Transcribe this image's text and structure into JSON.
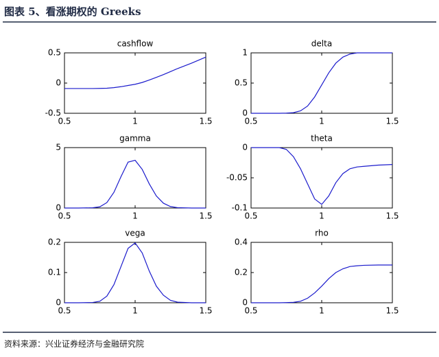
{
  "header": {
    "title": "图表 5、看涨期权的 Greeks"
  },
  "footer": {
    "source": "资料来源：兴业证券经济与金融研究院"
  },
  "chart_data": [
    {
      "type": "line",
      "title": "cashflow",
      "color": "#1a1acc",
      "x": [
        0.5,
        0.6,
        0.7,
        0.75,
        0.8,
        0.85,
        0.9,
        0.95,
        1,
        1.05,
        1.1,
        1.15,
        1.2,
        1.25,
        1.3,
        1.4,
        1.5
      ],
      "values": [
        -0.09,
        -0.09,
        -0.09,
        -0.088,
        -0.085,
        -0.075,
        -0.06,
        -0.04,
        -0.02,
        0.01,
        0.05,
        0.095,
        0.14,
        0.19,
        0.24,
        0.33,
        0.43
      ],
      "xlim": [
        0.5,
        1.5
      ],
      "xticks": [
        0.5,
        1,
        1.5
      ],
      "ylim": [
        -0.5,
        0.5
      ],
      "yticks": [
        -0.5,
        0,
        0.5
      ]
    },
    {
      "type": "line",
      "title": "delta",
      "color": "#1a1acc",
      "x": [
        0.5,
        0.6,
        0.7,
        0.75,
        0.8,
        0.85,
        0.9,
        0.95,
        1,
        1.05,
        1.1,
        1.15,
        1.2,
        1.25,
        1.3,
        1.4,
        1.5
      ],
      "values": [
        0,
        0,
        0,
        0.003,
        0.01,
        0.04,
        0.12,
        0.27,
        0.47,
        0.67,
        0.83,
        0.93,
        0.98,
        1,
        1,
        1,
        1
      ],
      "xlim": [
        0.5,
        1.5
      ],
      "xticks": [
        0.5,
        1,
        1.5
      ],
      "ylim": [
        0,
        1
      ],
      "yticks": [
        0,
        0.5,
        1
      ]
    },
    {
      "type": "line",
      "title": "gamma",
      "color": "#1a1acc",
      "x": [
        0.5,
        0.6,
        0.7,
        0.75,
        0.8,
        0.85,
        0.9,
        0.95,
        1,
        1.05,
        1.1,
        1.15,
        1.2,
        1.25,
        1.3,
        1.4,
        1.5
      ],
      "values": [
        0,
        0,
        0.02,
        0.1,
        0.45,
        1.3,
        2.6,
        3.8,
        3.95,
        3.2,
        2.0,
        1.0,
        0.4,
        0.12,
        0.03,
        0,
        0
      ],
      "xlim": [
        0.5,
        1.5
      ],
      "xticks": [
        0.5,
        1,
        1.5
      ],
      "ylim": [
        0,
        5
      ],
      "yticks": [
        0,
        5
      ]
    },
    {
      "type": "line",
      "title": "theta",
      "color": "#1a1acc",
      "x": [
        0.5,
        0.6,
        0.7,
        0.75,
        0.8,
        0.85,
        0.9,
        0.95,
        1,
        1.05,
        1.1,
        1.15,
        1.2,
        1.25,
        1.3,
        1.4,
        1.5
      ],
      "values": [
        0,
        0,
        0,
        -0.003,
        -0.015,
        -0.035,
        -0.06,
        -0.085,
        -0.094,
        -0.08,
        -0.058,
        -0.043,
        -0.035,
        -0.032,
        -0.031,
        -0.029,
        -0.028
      ],
      "xlim": [
        0.5,
        1.5
      ],
      "xticks": [
        0.5,
        1,
        1.5
      ],
      "ylim": [
        -0.1,
        0
      ],
      "yticks": [
        -0.1,
        -0.05,
        0
      ]
    },
    {
      "type": "line",
      "title": "vega",
      "color": "#1a1acc",
      "x": [
        0.5,
        0.6,
        0.7,
        0.75,
        0.8,
        0.85,
        0.9,
        0.95,
        1,
        1.05,
        1.1,
        1.15,
        1.2,
        1.25,
        1.3,
        1.4,
        1.5
      ],
      "values": [
        0,
        0,
        0.001,
        0.005,
        0.022,
        0.06,
        0.12,
        0.18,
        0.198,
        0.165,
        0.105,
        0.055,
        0.025,
        0.008,
        0.002,
        0,
        0
      ],
      "xlim": [
        0.5,
        1.5
      ],
      "xticks": [
        0.5,
        1,
        1.5
      ],
      "ylim": [
        0,
        0.2
      ],
      "yticks": [
        0,
        0.1,
        0.2
      ]
    },
    {
      "type": "line",
      "title": "rho",
      "color": "#1a1acc",
      "x": [
        0.5,
        0.6,
        0.7,
        0.75,
        0.8,
        0.85,
        0.9,
        0.95,
        1,
        1.05,
        1.1,
        1.15,
        1.2,
        1.25,
        1.3,
        1.4,
        1.5
      ],
      "values": [
        0,
        0,
        0,
        0.001,
        0.003,
        0.01,
        0.03,
        0.065,
        0.11,
        0.16,
        0.2,
        0.225,
        0.24,
        0.245,
        0.248,
        0.25,
        0.25
      ],
      "xlim": [
        0.5,
        1.5
      ],
      "xticks": [
        0.5,
        1,
        1.5
      ],
      "ylim": [
        0,
        0.4
      ],
      "yticks": [
        0,
        0.2,
        0.4
      ]
    }
  ]
}
